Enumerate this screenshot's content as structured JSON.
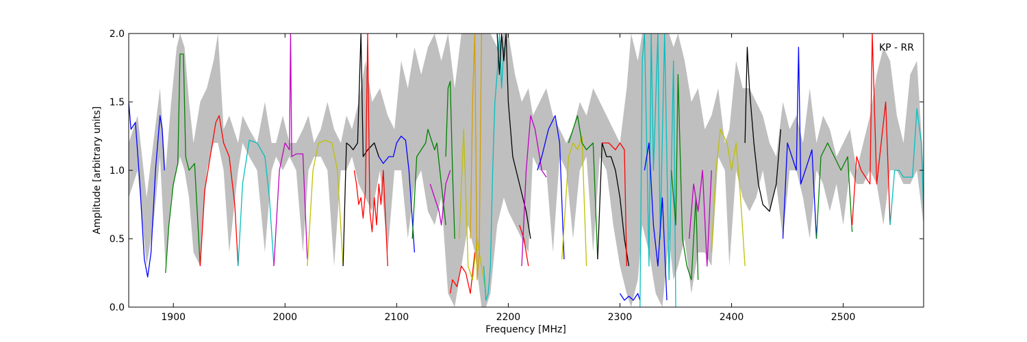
{
  "chart_data": {
    "type": "line",
    "title": "",
    "annotation": "KP - RR",
    "xlabel": "Frequency [MHz]",
    "ylabel": "Amplitude [arbitrary units]",
    "xlim": [
      1860,
      2572
    ],
    "ylim": [
      0,
      2
    ],
    "xticks": [
      1900,
      2000,
      2100,
      2200,
      2300,
      2400,
      2500
    ],
    "xtick_labels": [
      "1900",
      "2000",
      "2100",
      "2200",
      "2300",
      "2400",
      "2500"
    ],
    "yticks": [
      0,
      0.5,
      1,
      1.5,
      2
    ],
    "ytick_labels": [
      "0.0",
      "0.5",
      "1.0",
      "1.5",
      "2.0"
    ],
    "grid": false,
    "colors": {
      "envelope": "#bfbfbf",
      "blue": "#0000ff",
      "green": "#008000",
      "red": "#ff0000",
      "cyan": "#00bfbf",
      "magenta": "#bf00bf",
      "yellow": "#bfbf00",
      "black": "#000000",
      "orange": "#d4a000"
    },
    "envelope": {
      "x": [
        1860,
        1868,
        1876,
        1882,
        1888,
        1893,
        1898,
        1903,
        1906,
        1910,
        1914,
        1918,
        1924,
        1930,
        1936,
        1940,
        1945,
        1950,
        1958,
        1962,
        1968,
        1975,
        1982,
        1988,
        1992,
        1998,
        2004,
        2010,
        2016,
        2021,
        2026,
        2032,
        2038,
        2044,
        2050,
        2055,
        2060,
        2066,
        2072,
        2078,
        2085,
        2092,
        2098,
        2104,
        2110,
        2116,
        2122,
        2128,
        2134,
        2140,
        2146,
        2152,
        2158,
        2164,
        2170,
        2176,
        2180,
        2184,
        2190,
        2196,
        2200,
        2206,
        2212,
        2218,
        2222,
        2228,
        2234,
        2240,
        2246,
        2252,
        2258,
        2264,
        2270,
        2276,
        2282,
        2288,
        2294,
        2300,
        2306,
        2310,
        2316,
        2320,
        2326,
        2332,
        2338,
        2344,
        2348,
        2352,
        2358,
        2364,
        2370,
        2376,
        2382,
        2388,
        2394,
        2398,
        2404,
        2410,
        2416,
        2422,
        2428,
        2434,
        2440,
        2446,
        2452,
        2458,
        2464,
        2470,
        2476,
        2482,
        2488,
        2494,
        2500,
        2506,
        2512,
        2518,
        2524,
        2530,
        2536,
        2542,
        2548,
        2554,
        2560,
        2566,
        2572
      ],
      "upper": [
        1.2,
        1.4,
        0.8,
        1.2,
        1.6,
        1.0,
        1.5,
        1.9,
        2.0,
        1.9,
        1.5,
        1.2,
        1.5,
        1.6,
        1.8,
        2.0,
        1.3,
        1.4,
        1.2,
        1.4,
        1.3,
        1.2,
        1.5,
        1.2,
        1.2,
        1.4,
        1.2,
        1.2,
        1.3,
        1.4,
        1.2,
        1.3,
        1.5,
        1.3,
        1.2,
        1.4,
        1.3,
        1.5,
        1.8,
        1.5,
        1.6,
        1.4,
        1.3,
        1.8,
        1.6,
        1.9,
        1.7,
        1.9,
        2.0,
        1.8,
        2.0,
        1.6,
        2.0,
        2.0,
        2.0,
        2.0,
        2.0,
        2.0,
        1.9,
        2.0,
        2.0,
        1.7,
        1.5,
        1.6,
        1.4,
        1.5,
        1.6,
        1.4,
        1.3,
        1.2,
        1.3,
        1.5,
        1.4,
        1.6,
        1.5,
        1.4,
        1.3,
        1.2,
        1.6,
        2.0,
        1.8,
        2.0,
        2.0,
        2.0,
        2.0,
        2.0,
        1.9,
        2.0,
        1.8,
        1.5,
        1.6,
        1.3,
        1.4,
        1.6,
        1.2,
        1.3,
        1.8,
        1.6,
        1.6,
        1.5,
        1.4,
        1.2,
        1.1,
        1.5,
        1.3,
        1.4,
        1.2,
        1.6,
        1.2,
        1.4,
        1.3,
        1.1,
        1.2,
        1.3,
        1.0,
        1.2,
        1.4,
        1.7,
        1.9,
        1.8,
        1.4,
        1.2,
        1.7,
        1.8,
        1.0
      ],
      "lower": [
        0.8,
        1.0,
        0.3,
        0.6,
        1.1,
        0.3,
        0.8,
        1.0,
        1.1,
        1.0,
        0.8,
        0.4,
        0.3,
        1.0,
        1.2,
        1.2,
        1.0,
        0.4,
        1.0,
        1.2,
        1.1,
        1.0,
        0.4,
        1.0,
        1.1,
        1.0,
        1.1,
        1.0,
        0.4,
        1.0,
        1.1,
        1.1,
        1.0,
        0.3,
        1.0,
        1.0,
        1.1,
        0.9,
        0.8,
        0.7,
        1.0,
        0.4,
        1.0,
        1.0,
        0.5,
        0.9,
        1.0,
        0.7,
        0.6,
        0.8,
        0.1,
        0.0,
        0.3,
        0.6,
        0.4,
        0.0,
        0.0,
        0.1,
        0.6,
        0.8,
        0.7,
        0.6,
        0.5,
        0.4,
        1.1,
        1.0,
        1.0,
        0.4,
        1.1,
        1.0,
        0.5,
        1.0,
        1.1,
        0.4,
        1.1,
        1.0,
        0.6,
        0.3,
        0.1,
        0.0,
        0.2,
        0.6,
        0.4,
        0.1,
        0.0,
        0.5,
        0.2,
        0.3,
        0.5,
        0.1,
        0.4,
        0.4,
        0.3,
        1.1,
        1.0,
        0.3,
        1.0,
        0.8,
        0.7,
        0.8,
        1.0,
        0.7,
        0.9,
        0.5,
        1.0,
        1.0,
        0.8,
        0.5,
        1.0,
        0.9,
        0.7,
        0.9,
        0.6,
        1.0,
        0.9,
        0.9,
        1.0,
        0.9,
        0.6,
        1.0,
        1.0,
        0.9,
        0.9,
        1.0,
        0.6
      ]
    },
    "series": [
      {
        "color": "blue",
        "x": [
          1860,
          1862,
          1866,
          1870,
          1874,
          1877,
          1880,
          1884,
          1888,
          1890,
          1892
        ],
        "y": [
          1.5,
          1.3,
          1.35,
          0.9,
          0.35,
          0.22,
          0.4,
          1.0,
          1.4,
          1.3,
          1.0
        ]
      },
      {
        "color": "green",
        "x": [
          1893,
          1896,
          1900,
          1904,
          1906,
          1909,
          1911,
          1914,
          1919,
          1924
        ],
        "y": [
          0.25,
          0.6,
          0.9,
          1.05,
          1.85,
          1.85,
          1.1,
          1.0,
          1.05,
          0.3
        ]
      },
      {
        "color": "red",
        "x": [
          1924,
          1928,
          1934,
          1938,
          1941,
          1945,
          1950,
          1955,
          1958
        ],
        "y": [
          0.3,
          0.85,
          1.15,
          1.35,
          1.4,
          1.2,
          1.1,
          0.75,
          0.3
        ]
      },
      {
        "color": "cyan",
        "x": [
          1958,
          1962,
          1968,
          1975,
          1982,
          1986,
          1990
        ],
        "y": [
          0.3,
          0.9,
          1.22,
          1.2,
          1.1,
          0.8,
          0.3
        ]
      },
      {
        "color": "magenta",
        "x": [
          1990,
          1995,
          2000,
          2004,
          2005,
          2006,
          2010,
          2016,
          2020
        ],
        "y": [
          0.3,
          1.0,
          1.2,
          1.15,
          2.0,
          1.1,
          1.12,
          1.12,
          0.35
        ]
      },
      {
        "color": "yellow",
        "x": [
          2020,
          2025,
          2030,
          2036,
          2042,
          2047,
          2052
        ],
        "y": [
          0.3,
          1.0,
          1.2,
          1.22,
          1.2,
          1.0,
          0.3
        ]
      },
      {
        "color": "black",
        "x": [
          2052,
          2055,
          2058,
          2061,
          2065,
          2068,
          2070,
          2074,
          2080,
          2084
        ],
        "y": [
          0.3,
          1.2,
          1.18,
          1.15,
          1.2,
          2.0,
          1.1,
          1.15,
          1.2,
          1.1
        ]
      },
      {
        "color": "red",
        "x": [
          2062,
          2064,
          2066,
          2068,
          2070,
          2072,
          2074,
          2076,
          2078,
          2080,
          2082,
          2084,
          2086,
          2088,
          2092
        ],
        "y": [
          1.0,
          0.9,
          0.75,
          0.8,
          0.65,
          0.85,
          2.0,
          0.7,
          0.55,
          0.8,
          0.6,
          0.9,
          0.75,
          1.0,
          0.3
        ]
      },
      {
        "color": "blue",
        "x": [
          2084,
          2088,
          2093,
          2097,
          2100,
          2104,
          2108,
          2111,
          2116
        ],
        "y": [
          1.1,
          1.05,
          1.1,
          1.1,
          1.2,
          1.25,
          1.22,
          1.0,
          0.4
        ]
      },
      {
        "color": "green",
        "x": [
          2114,
          2118,
          2122,
          2126,
          2128,
          2132,
          2134,
          2136,
          2140,
          2144
        ],
        "y": [
          0.5,
          1.1,
          1.15,
          1.2,
          1.3,
          1.2,
          1.15,
          1.2,
          0.9,
          0.6
        ]
      },
      {
        "color": "magenta",
        "x": [
          2130,
          2134,
          2138,
          2140,
          2144,
          2148
        ],
        "y": [
          0.9,
          0.8,
          0.7,
          0.6,
          0.9,
          1.0
        ]
      },
      {
        "color": "green",
        "x": [
          2144,
          2146,
          2148,
          2150,
          2152
        ],
        "y": [
          1.1,
          1.6,
          1.65,
          1.0,
          0.5
        ]
      },
      {
        "color": "red",
        "x": [
          2148,
          2150,
          2154,
          2158,
          2162,
          2166,
          2170
        ],
        "y": [
          0.1,
          0.2,
          0.15,
          0.3,
          0.25,
          0.1,
          0.4
        ]
      },
      {
        "color": "yellow",
        "x": [
          2156,
          2160,
          2164,
          2168,
          2172,
          2176,
          2180
        ],
        "y": [
          0.5,
          1.3,
          0.3,
          0.2,
          0.5,
          0.3,
          0.1
        ]
      },
      {
        "color": "orange",
        "x": [
          2166,
          2168,
          2170,
          2172,
          2174,
          2176
        ],
        "y": [
          0.5,
          1.5,
          2.0,
          0.2,
          0.4,
          2.0
        ]
      },
      {
        "color": "cyan",
        "x": [
          2178,
          2180,
          2182,
          2184,
          2186,
          2188,
          2190,
          2192,
          2194,
          2196
        ],
        "y": [
          0.3,
          0.05,
          0.1,
          0.3,
          1.0,
          1.5,
          1.7,
          2.0,
          1.6,
          1.9
        ]
      },
      {
        "color": "black",
        "x": [
          2190,
          2192,
          2194,
          2196,
          2198,
          2200,
          2204,
          2210,
          2216,
          2220
        ],
        "y": [
          2.0,
          1.7,
          2.0,
          1.8,
          2.0,
          1.5,
          1.1,
          0.9,
          0.7,
          0.5
        ]
      },
      {
        "color": "red",
        "x": [
          2210,
          2214,
          2218
        ],
        "y": [
          0.6,
          0.5,
          0.3
        ]
      },
      {
        "color": "magenta",
        "x": [
          2212,
          2216,
          2220,
          2224,
          2230,
          2234
        ],
        "y": [
          0.3,
          1.0,
          1.4,
          1.3,
          1.0,
          0.95
        ]
      },
      {
        "color": "blue",
        "x": [
          2226,
          2230,
          2236,
          2242,
          2246,
          2250
        ],
        "y": [
          1.0,
          1.1,
          1.3,
          1.4,
          1.2,
          0.35
        ]
      },
      {
        "color": "yellow",
        "x": [
          2248,
          2254,
          2258,
          2262,
          2266,
          2270
        ],
        "y": [
          0.35,
          1.1,
          1.2,
          1.15,
          1.25,
          0.3
        ]
      },
      {
        "color": "green",
        "x": [
          2254,
          2258,
          2262,
          2266,
          2270,
          2276,
          2280
        ],
        "y": [
          1.2,
          1.3,
          1.4,
          1.2,
          1.15,
          1.2,
          0.35
        ]
      },
      {
        "color": "black",
        "x": [
          2280,
          2284,
          2288,
          2292,
          2296,
          2300,
          2304,
          2308
        ],
        "y": [
          0.35,
          1.2,
          1.1,
          1.1,
          1.0,
          0.8,
          0.5,
          0.3
        ]
      },
      {
        "color": "red",
        "x": [
          2284,
          2290,
          2296,
          2300,
          2304,
          2306
        ],
        "y": [
          1.2,
          1.2,
          1.15,
          1.2,
          1.15,
          0.3
        ]
      },
      {
        "color": "blue",
        "x": [
          2300,
          2304,
          2308,
          2312,
          2316,
          2318
        ],
        "y": [
          0.1,
          0.05,
          0.08,
          0.05,
          0.1,
          0.05
        ]
      },
      {
        "color": "cyan",
        "x": [
          2318,
          2320,
          2322,
          2324,
          2326,
          2328,
          2330,
          2334,
          2336,
          2340,
          2344,
          2348,
          2350
        ],
        "y": [
          0.0,
          1.8,
          2.0,
          1.2,
          0.3,
          2.0,
          1.0,
          2.0,
          0.5,
          2.0,
          0.2,
          1.8,
          0.0
        ]
      },
      {
        "color": "blue",
        "x": [
          2322,
          2326,
          2330,
          2334,
          2338,
          2342
        ],
        "y": [
          1.0,
          1.2,
          0.6,
          0.3,
          0.8,
          0.05
        ]
      },
      {
        "color": "green",
        "x": [
          2346,
          2350,
          2352,
          2356,
          2360,
          2364,
          2368,
          2370
        ],
        "y": [
          1.0,
          0.6,
          1.7,
          0.5,
          0.3,
          0.2,
          0.8,
          0.2
        ]
      },
      {
        "color": "magenta",
        "x": [
          2362,
          2366,
          2370,
          2374,
          2378,
          2382
        ],
        "y": [
          0.5,
          0.9,
          0.7,
          1.0,
          0.3,
          1.0
        ]
      },
      {
        "color": "yellow",
        "x": [
          2382,
          2386,
          2390,
          2396,
          2400,
          2404,
          2408,
          2412
        ],
        "y": [
          0.4,
          1.0,
          1.3,
          1.2,
          1.0,
          1.2,
          0.8,
          0.3
        ]
      },
      {
        "color": "black",
        "x": [
          2412,
          2414,
          2416,
          2420,
          2424,
          2428,
          2434,
          2440,
          2444
        ],
        "y": [
          1.2,
          1.9,
          1.6,
          1.2,
          0.9,
          0.75,
          0.7,
          0.9,
          1.3
        ]
      },
      {
        "color": "blue",
        "x": [
          2446,
          2450,
          2454,
          2458,
          2460,
          2462,
          2466,
          2472,
          2476
        ],
        "y": [
          0.5,
          1.2,
          1.1,
          1.0,
          1.9,
          0.9,
          1.0,
          1.15,
          0.5
        ]
      },
      {
        "color": "green",
        "x": [
          2476,
          2480,
          2486,
          2492,
          2498,
          2504,
          2508
        ],
        "y": [
          0.5,
          1.1,
          1.2,
          1.1,
          1.0,
          1.1,
          0.55
        ]
      },
      {
        "color": "red",
        "x": [
          2508,
          2512,
          2516,
          2520,
          2524,
          2526,
          2530,
          2534,
          2538,
          2542
        ],
        "y": [
          0.6,
          1.1,
          1.0,
          0.95,
          0.9,
          2.0,
          0.9,
          1.2,
          1.5,
          0.6
        ]
      },
      {
        "color": "cyan",
        "x": [
          2542,
          2546,
          2550,
          2554,
          2558,
          2562,
          2566,
          2570,
          2572
        ],
        "y": [
          0.6,
          1.0,
          1.0,
          0.95,
          0.95,
          0.95,
          1.45,
          1.2,
          0.7
        ]
      }
    ]
  }
}
